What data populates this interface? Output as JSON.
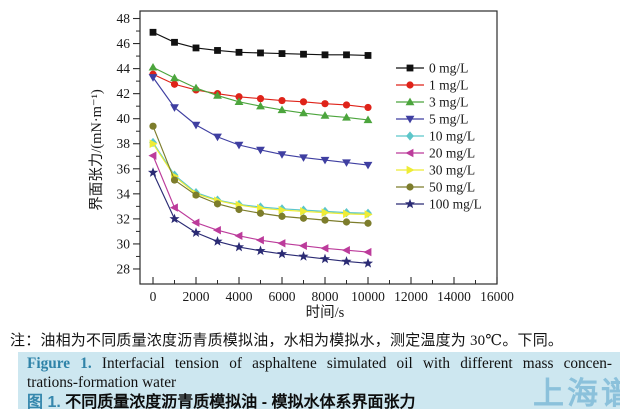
{
  "figure": {
    "note": "注：油相为不同质量浓度沥青质模拟油，水相为模拟水，测定温度为 30℃。下同。",
    "caption_en_label": "Figure 1.",
    "caption_en_line1": " Interfacial tension of asphaltene simulated oil with different mass concen-",
    "caption_en_line2": "trations-formation water",
    "caption_zh_label": "图 1.",
    "caption_zh_text": " 不同质量浓度沥青质模拟油 - 模拟水体系界面张力",
    "watermark": "上海谱",
    "colors": {
      "caption_band": "#cde7f0",
      "figure_label_blue": "#2f83a8",
      "watermark_blue": "#7ab8d6"
    }
  },
  "chart_data": {
    "type": "line",
    "title": "",
    "xlabel": "时间/s",
    "ylabel": "界面张力/(mN·m⁻¹)",
    "xlim": [
      0,
      16000
    ],
    "ylim": [
      28,
      48
    ],
    "x_ticks": [
      0,
      2000,
      4000,
      6000,
      8000,
      10000,
      12000,
      14000,
      16000
    ],
    "y_ticks": [
      28,
      30,
      32,
      34,
      36,
      38,
      40,
      42,
      44,
      46,
      48
    ],
    "x_minor_ticks": [
      1000,
      3000,
      5000,
      7000,
      9000,
      11000,
      13000,
      15000
    ],
    "y_minor_ticks": [
      29,
      31,
      33,
      35,
      37,
      39,
      41,
      43,
      45,
      47
    ],
    "grid": false,
    "legend_position": "inside-right",
    "x": [
      0,
      1000,
      2000,
      3000,
      4000,
      5000,
      6000,
      7000,
      8000,
      9000,
      10000
    ],
    "series": [
      {
        "name": "0 mg/L",
        "marker": "square",
        "color": "#111111",
        "values": [
          46.9,
          46.1,
          45.65,
          45.45,
          45.3,
          45.25,
          45.2,
          45.15,
          45.1,
          45.1,
          45.05
        ]
      },
      {
        "name": "1 mg/L",
        "marker": "circle",
        "color": "#df2319",
        "values": [
          43.55,
          42.75,
          42.3,
          42.0,
          41.75,
          41.6,
          41.45,
          41.35,
          41.2,
          41.1,
          40.9
        ]
      },
      {
        "name": "3 mg/L",
        "marker": "triangle-up",
        "color": "#4ca53d",
        "values": [
          44.1,
          43.25,
          42.45,
          41.85,
          41.35,
          41.0,
          40.7,
          40.45,
          40.25,
          40.1,
          39.9
        ]
      },
      {
        "name": "5 mg/L",
        "marker": "triangle-down",
        "color": "#3f3fa1",
        "values": [
          43.3,
          40.9,
          39.5,
          38.55,
          37.9,
          37.5,
          37.15,
          36.9,
          36.7,
          36.5,
          36.3
        ]
      },
      {
        "name": "10 mg/L",
        "marker": "diamond",
        "color": "#5cc6c9",
        "values": [
          38.1,
          35.5,
          34.1,
          33.5,
          33.15,
          32.95,
          32.8,
          32.7,
          32.6,
          32.5,
          32.45
        ]
      },
      {
        "name": "20 mg/L",
        "marker": "triangle-left",
        "color": "#bc3b9b",
        "values": [
          37.05,
          32.9,
          31.7,
          31.1,
          30.65,
          30.3,
          30.05,
          29.85,
          29.65,
          29.5,
          29.35
        ]
      },
      {
        "name": "30 mg/L",
        "marker": "triangle-right",
        "color": "#eeec36",
        "values": [
          38.0,
          35.4,
          34.0,
          33.45,
          33.1,
          32.85,
          32.7,
          32.6,
          32.5,
          32.4,
          32.35
        ]
      },
      {
        "name": "50 mg/L",
        "marker": "circle",
        "color": "#7d7d2c",
        "values": [
          39.4,
          35.1,
          33.9,
          33.2,
          32.75,
          32.45,
          32.2,
          32.05,
          31.9,
          31.75,
          31.65
        ]
      },
      {
        "name": "100 mg/L",
        "marker": "star",
        "color": "#2b2b74",
        "values": [
          35.7,
          32.0,
          30.9,
          30.2,
          29.75,
          29.45,
          29.2,
          29.0,
          28.8,
          28.6,
          28.45
        ]
      }
    ]
  }
}
